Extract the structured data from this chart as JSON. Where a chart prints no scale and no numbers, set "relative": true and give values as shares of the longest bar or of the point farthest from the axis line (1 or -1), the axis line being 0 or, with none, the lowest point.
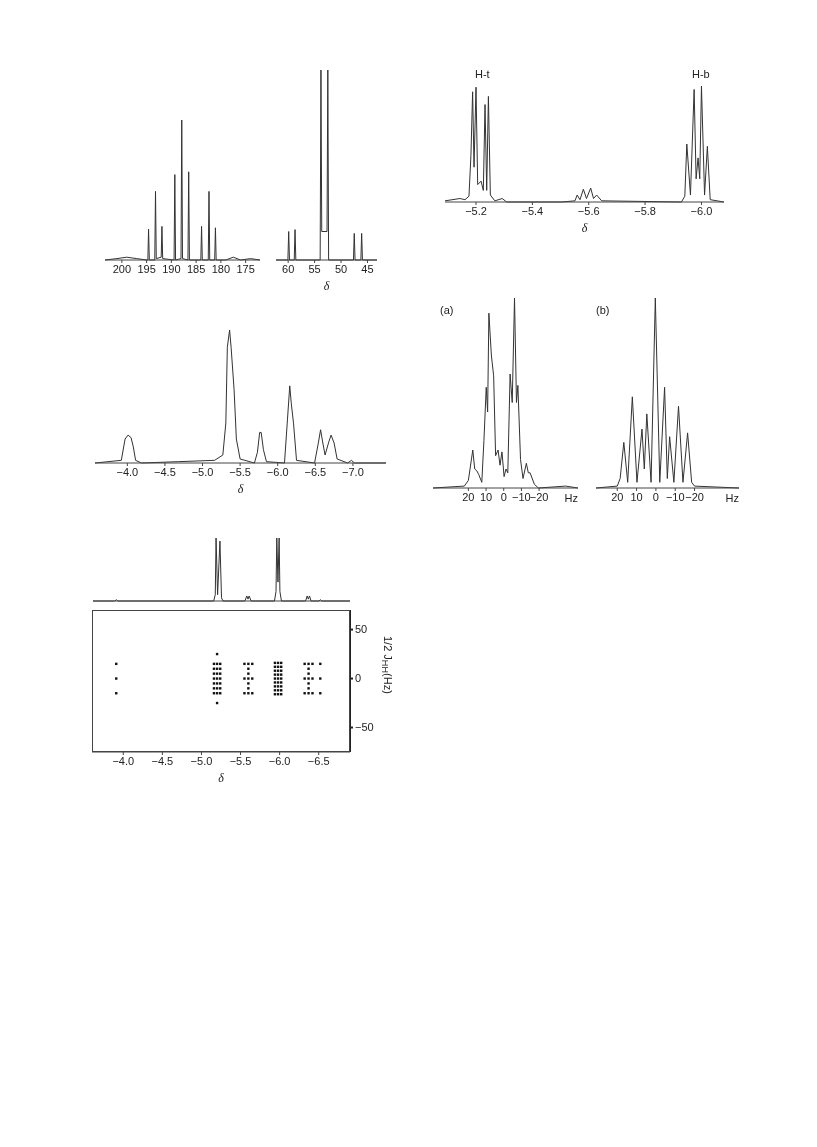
{
  "chart_data": [
    {
      "type": "line",
      "relative": true,
      "color": "#333333",
      "xlim": [
        203.4,
        172.1
      ],
      "xticks": [
        200,
        195,
        190,
        185,
        180,
        175
      ],
      "x": [
        203.4,
        201,
        199,
        197,
        195,
        194.75,
        194.6,
        194.45,
        193.35,
        193.2,
        193.05,
        192.05,
        191.9,
        191.75,
        189.45,
        189.3,
        189.15,
        188.05,
        187.9,
        187.75,
        186.65,
        186.5,
        186.35,
        184.05,
        183.9,
        183.75,
        182.55,
        182.4,
        182.25,
        181.25,
        181.1,
        180.95,
        179,
        177.5,
        176,
        174,
        172.1
      ],
      "values": [
        0,
        0.01,
        0.02,
        0.01,
        0,
        0,
        0.22,
        0,
        0,
        0.49,
        0.01,
        0.02,
        0.24,
        0.01,
        0,
        0.61,
        0,
        0.01,
        1.0,
        0.01,
        0,
        0.63,
        0,
        0,
        0.24,
        0,
        0,
        0.49,
        0,
        0,
        0.23,
        0,
        0,
        0.02,
        0,
        0.01,
        0
      ]
    },
    {
      "type": "line",
      "relative": true,
      "color": "#333333",
      "xlabel": "δ",
      "xlim": [
        62.3,
        43.2
      ],
      "xticks": [
        60,
        55,
        50,
        45
      ],
      "x": [
        62.3,
        60.05,
        59.9,
        59.75,
        58.85,
        58.7,
        58.55,
        53.95,
        53.8,
        53.65,
        52.65,
        52.5,
        52.35,
        47.65,
        47.5,
        47.35,
        46.25,
        46.1,
        45.95,
        43.2
      ],
      "values": [
        0,
        0,
        0.15,
        0,
        0,
        0.16,
        0,
        0,
        1.0,
        0.15,
        0.15,
        1.0,
        0,
        0,
        0.14,
        0,
        0,
        0.14,
        0,
        0
      ]
    },
    {
      "type": "line",
      "relative": true,
      "color": "#333333",
      "xlabel": "δ",
      "xlim": [
        -5.09,
        -6.08
      ],
      "xticks": [
        {
          "value": -5.2,
          "label": "−5.2"
        },
        {
          "value": -5.4,
          "label": "−5.4"
        },
        {
          "value": -5.6,
          "label": "−5.6"
        },
        {
          "value": -5.8,
          "label": "−5.8"
        },
        {
          "value": -6.0,
          "label": "−6.0"
        }
      ],
      "annotations": [
        "H-t",
        "H-b"
      ],
      "x": [
        -5.09,
        -5.143,
        -5.161,
        -5.175,
        -5.182,
        -5.188,
        -5.193,
        -5.2,
        -5.206,
        -5.218,
        -5.226,
        -5.232,
        -5.238,
        -5.244,
        -5.251,
        -5.267,
        -5.293,
        -5.309,
        -5.504,
        -5.551,
        -5.559,
        -5.569,
        -5.581,
        -5.592,
        -5.607,
        -5.617,
        -5.628,
        -5.646,
        -5.929,
        -5.941,
        -5.948,
        -5.961,
        -5.974,
        -5.981,
        -5.988,
        -5.994,
        -6.0,
        -6.011,
        -6.021,
        -6.031,
        -6.08
      ],
      "values": [
        0.01,
        0.03,
        0.02,
        0.05,
        0.4,
        0.95,
        0.3,
        0.99,
        0.15,
        0.18,
        0.1,
        0.84,
        0.1,
        0.91,
        0.06,
        0.01,
        0.03,
        0,
        0,
        0.01,
        0.06,
        0.02,
        0.11,
        0.03,
        0.12,
        0.03,
        0.06,
        0.01,
        0,
        0.05,
        0.5,
        0.06,
        0.97,
        0.2,
        0.38,
        0.2,
        1.0,
        0.06,
        0.48,
        0.02,
        0
      ]
    },
    {
      "type": "line",
      "relative": true,
      "color": "#333333",
      "xlabel": "δ",
      "xlim": [
        -3.57,
        -7.44
      ],
      "xticks": [
        {
          "value": -4.0,
          "label": "−4.0"
        },
        {
          "value": -4.5,
          "label": "−4.5"
        },
        {
          "value": -5.0,
          "label": "−5.0"
        },
        {
          "value": -5.5,
          "label": "−5.5"
        },
        {
          "value": -6.0,
          "label": "−6.0"
        },
        {
          "value": -6.5,
          "label": "−6.5"
        },
        {
          "value": -7.0,
          "label": "−7.0"
        }
      ],
      "x": [
        -3.57,
        -3.92,
        -3.97,
        -4.01,
        -4.05,
        -4.08,
        -4.11,
        -4.19,
        -4.68,
        -5.16,
        -5.27,
        -5.31,
        -5.33,
        -5.36,
        -5.38,
        -5.42,
        -5.45,
        -5.5,
        -5.69,
        -5.73,
        -5.76,
        -5.78,
        -5.81,
        -5.85,
        -6.09,
        -6.13,
        -6.16,
        -6.18,
        -6.21,
        -6.25,
        -6.49,
        -6.54,
        -6.57,
        -6.6,
        -6.63,
        -6.68,
        -6.71,
        -6.75,
        -6.79,
        -6.93,
        -6.98,
        -7.02,
        -7.44
      ],
      "values": [
        0,
        0.02,
        0.18,
        0.21,
        0.19,
        0.12,
        0.02,
        0,
        0.01,
        0.02,
        0.06,
        0.3,
        0.87,
        1.0,
        0.87,
        0.55,
        0.18,
        0.03,
        0,
        0.08,
        0.23,
        0.23,
        0.1,
        0.01,
        0,
        0.33,
        0.58,
        0.45,
        0.3,
        0.02,
        0,
        0.15,
        0.25,
        0.15,
        0.06,
        0.16,
        0.21,
        0.15,
        0.03,
        0,
        0.02,
        0,
        0
      ]
    },
    {
      "type": "line",
      "relative": true,
      "color": "#333333",
      "title": "(a)",
      "xlabel": "Hz",
      "xlim": [
        40,
        -42
      ],
      "xticks": [
        20,
        10,
        0,
        {
          "value": -10,
          "label": "−10"
        },
        {
          "value": -20,
          "label": "−20"
        }
      ],
      "x": [
        40,
        22.3,
        20,
        17.5,
        16.4,
        15.2,
        14.1,
        12.4,
        11.2,
        9.9,
        9.1,
        8.4,
        7,
        5.7,
        4.6,
        3.2,
        2.1,
        1,
        -0.2,
        -1.3,
        -2.3,
        -3.6,
        -4.8,
        -6.1,
        -7.2,
        -8,
        -9.5,
        -10.9,
        -12.8,
        -13.9,
        -14.9,
        -17.3,
        -19.6,
        -35,
        -42
      ],
      "values": [
        0,
        0.01,
        0.04,
        0.2,
        0.1,
        0.09,
        0.07,
        0.03,
        0.25,
        0.53,
        0.4,
        0.92,
        0.7,
        0.59,
        0.17,
        0.2,
        0.12,
        0.19,
        0.06,
        0.1,
        0.08,
        0.6,
        0.45,
        1.0,
        0.45,
        0.54,
        0.15,
        0.05,
        0.13,
        0.08,
        0.08,
        0.02,
        0,
        0.01,
        0
      ]
    },
    {
      "type": "line",
      "relative": true,
      "color": "#333333",
      "title": "(b)",
      "xlabel": "Hz",
      "xlim": [
        31,
        -43
      ],
      "xticks": [
        20,
        10,
        0,
        {
          "value": -10,
          "label": "−10"
        },
        {
          "value": -20,
          "label": "−20"
        }
      ],
      "x": [
        31,
        20,
        18.5,
        16.6,
        14.6,
        12.2,
        9.8,
        7.2,
        6.0,
        4.7,
        2.5,
        0.3,
        -2,
        -4.5,
        -5.9,
        -7.1,
        -9.3,
        -11.7,
        -14,
        -16.4,
        -18.5,
        -20,
        -43
      ],
      "values": [
        0,
        0.01,
        0.05,
        0.24,
        0.03,
        0.48,
        0.03,
        0.31,
        0.1,
        0.39,
        0.03,
        1.0,
        0.03,
        0.53,
        0.05,
        0.27,
        0.03,
        0.43,
        0.03,
        0.29,
        0.03,
        0.01,
        0
      ]
    },
    {
      "type": "line",
      "relative": true,
      "color": "#333333",
      "xlim": [
        -3.6,
        -6.9
      ],
      "x": [
        -3.6,
        -3.88,
        -3.9,
        -3.92,
        -5.15,
        -5.17,
        -5.18,
        -5.2,
        -5.23,
        -5.25,
        -5.27,
        -5.55,
        -5.575,
        -5.59,
        -5.605,
        -5.63,
        -5.93,
        -5.95,
        -5.96,
        -5.975,
        -5.99,
        -6.0,
        -6.02,
        -6.33,
        -6.35,
        -6.365,
        -6.38,
        -6.4,
        -6.5,
        -6.52,
        -6.54,
        -6.9
      ],
      "values": [
        0,
        0,
        0.02,
        0,
        0,
        0.1,
        1.0,
        0.1,
        0.95,
        0.05,
        0,
        0,
        0.08,
        0.03,
        0.08,
        0,
        0,
        0.15,
        1.0,
        0.3,
        1.0,
        0.15,
        0,
        0,
        0.08,
        0.03,
        0.08,
        0,
        0,
        0.02,
        0,
        0
      ]
    },
    {
      "type": "scatter",
      "marker": "square",
      "color": "#111111",
      "xlabel": "δ",
      "ylabel": "1/2 J$_{HH}$(Hz)",
      "xlim": [
        -3.6,
        -6.9
      ],
      "ylim": [
        -75,
        70
      ],
      "xticks": [
        {
          "value": -4.0,
          "label": "−4.0"
        },
        {
          "value": -4.5,
          "label": "−4.5"
        },
        {
          "value": -5.0,
          "label": "−5.0"
        },
        {
          "value": -5.5,
          "label": "−5.5"
        },
        {
          "value": -6.0,
          "label": "−6.0"
        },
        {
          "value": -6.5,
          "label": "−6.5"
        }
      ],
      "yticks": [
        50,
        0,
        {
          "value": -50,
          "label": "−50"
        }
      ],
      "x": [
        -3.91,
        -3.91,
        -3.91,
        -5.16,
        -5.16,
        -5.16,
        -5.16,
        -5.16,
        -5.16,
        -5.16,
        -5.2,
        -5.2,
        -5.2,
        -5.2,
        -5.2,
        -5.2,
        -5.2,
        -5.24,
        -5.24,
        -5.24,
        -5.24,
        -5.24,
        -5.24,
        -5.24,
        -5.2,
        -5.2,
        -5.6,
        -5.6,
        -5.6,
        -5.6,
        -5.6,
        -5.6,
        -5.6,
        -5.55,
        -5.55,
        -5.55,
        -5.65,
        -5.65,
        -5.65,
        -5.94,
        -5.94,
        -5.94,
        -5.94,
        -5.94,
        -5.94,
        -5.94,
        -5.94,
        -5.94,
        -5.98,
        -5.98,
        -5.98,
        -5.98,
        -5.98,
        -5.98,
        -5.98,
        -5.98,
        -5.98,
        -6.02,
        -6.02,
        -6.02,
        -6.02,
        -6.02,
        -6.02,
        -6.02,
        -6.02,
        -6.02,
        -6.37,
        -6.37,
        -6.37,
        -6.37,
        -6.37,
        -6.37,
        -6.37,
        -6.32,
        -6.32,
        -6.32,
        -6.42,
        -6.42,
        -6.42,
        -6.52,
        -6.52,
        -6.52
      ],
      "values": [
        15,
        0,
        -15,
        15,
        10,
        5,
        0,
        -5,
        -10,
        -15,
        15,
        10,
        5,
        0,
        -5,
        -10,
        -15,
        15,
        10,
        5,
        0,
        -5,
        -10,
        -15,
        25,
        -25,
        15,
        10,
        5,
        0,
        -5,
        -10,
        -15,
        15,
        0,
        -15,
        15,
        0,
        -15,
        16,
        12,
        8,
        4,
        0,
        -4,
        -8,
        -12,
        -16,
        16,
        12,
        8,
        4,
        0,
        -4,
        -8,
        -12,
        -16,
        16,
        12,
        8,
        4,
        0,
        -4,
        -8,
        -12,
        -16,
        15,
        10,
        5,
        0,
        -5,
        -10,
        -15,
        15,
        0,
        -15,
        15,
        0,
        -15,
        15,
        0,
        -15
      ]
    }
  ]
}
